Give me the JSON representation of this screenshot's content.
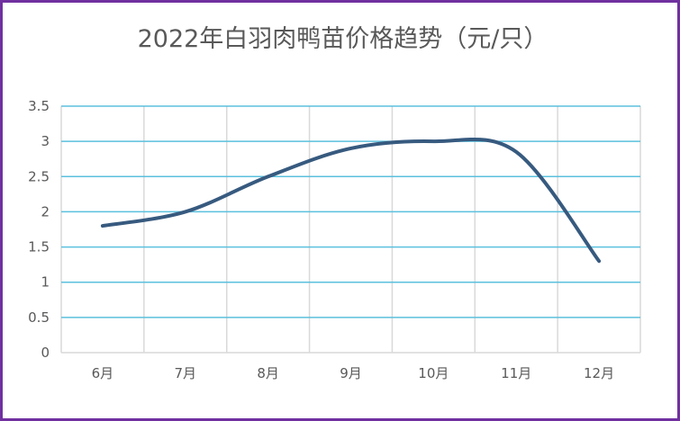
{
  "chart_data": {
    "type": "line",
    "title": "2022年白羽肉鸭苗价格趋势（元/只）",
    "xlabel": "",
    "ylabel": "",
    "categories": [
      "6月",
      "7月",
      "8月",
      "9月",
      "10月",
      "11月",
      "12月"
    ],
    "y_ticks": [
      "0",
      "0.5",
      "1",
      "1.5",
      "2",
      "2.5",
      "3",
      "3.5"
    ],
    "ylim": [
      0,
      3.5
    ],
    "series": [
      {
        "values": [
          1.8,
          2.0,
          2.5,
          2.9,
          3.0,
          2.85,
          1.3
        ]
      }
    ],
    "grid": true,
    "legend": "none",
    "colors": {
      "line": "#375a7f",
      "horizontal_grid": "#5bc0de",
      "vertical_grid": "#d9d9d9",
      "border": "#7030a0"
    }
  }
}
